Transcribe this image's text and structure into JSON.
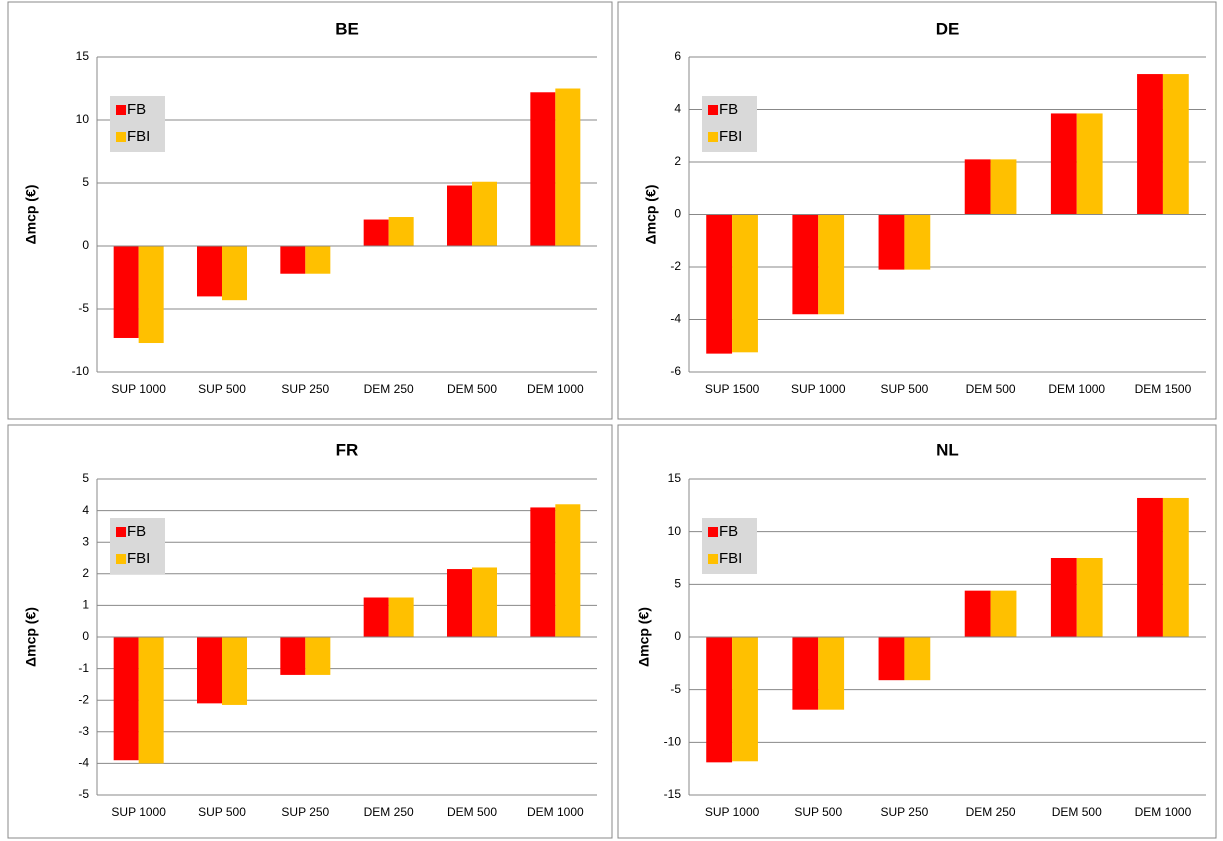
{
  "chart_data": [
    {
      "type": "bar",
      "title": "BE",
      "ylabel": "Δmcp (€)",
      "legend": "upper left",
      "grid": true,
      "categories": [
        "SUP 1000",
        "SUP 500",
        "SUP 250",
        "DEM 250",
        "DEM 500",
        "DEM 1000"
      ],
      "series": [
        {
          "name": "FB",
          "color": "#ff0000",
          "values": [
            -7.3,
            -4.0,
            -2.2,
            2.1,
            4.8,
            12.2
          ]
        },
        {
          "name": "FBI",
          "color": "#ffc000",
          "values": [
            -7.7,
            -4.3,
            -2.2,
            2.3,
            5.1,
            12.5
          ]
        }
      ],
      "ylim": [
        -10,
        15
      ],
      "yticks": [
        -10,
        -5,
        0,
        5,
        10,
        15
      ]
    },
    {
      "type": "bar",
      "title": "DE",
      "ylabel": "Δmcp (€)",
      "legend": "upper left",
      "grid": true,
      "categories": [
        "SUP 1500",
        "SUP 1000",
        "SUP 500",
        "DEM 500",
        "DEM 1000",
        "DEM 1500"
      ],
      "series": [
        {
          "name": "FB",
          "color": "#ff0000",
          "values": [
            -5.3,
            -3.8,
            -2.1,
            2.1,
            3.85,
            5.35
          ]
        },
        {
          "name": "FBI",
          "color": "#ffc000",
          "values": [
            -5.25,
            -3.8,
            -2.1,
            2.1,
            3.85,
            5.35
          ]
        }
      ],
      "ylim": [
        -6,
        6
      ],
      "yticks": [
        -6,
        -4,
        -2,
        0,
        2,
        4,
        6
      ]
    },
    {
      "type": "bar",
      "title": "FR",
      "ylabel": "Δmcp (€)",
      "legend": "upper left",
      "grid": true,
      "categories": [
        "SUP 1000",
        "SUP 500",
        "SUP 250",
        "DEM 250",
        "DEM 500",
        "DEM 1000"
      ],
      "series": [
        {
          "name": "FB",
          "color": "#ff0000",
          "values": [
            -3.9,
            -2.1,
            -1.2,
            1.25,
            2.15,
            4.1
          ]
        },
        {
          "name": "FBI",
          "color": "#ffc000",
          "values": [
            -4.0,
            -2.15,
            -1.2,
            1.25,
            2.2,
            4.2
          ]
        }
      ],
      "ylim": [
        -5,
        5
      ],
      "yticks": [
        -5,
        -4,
        -3,
        -2,
        -1,
        0,
        1,
        2,
        3,
        4,
        5
      ]
    },
    {
      "type": "bar",
      "title": "NL",
      "ylabel": "Δmcp (€)",
      "legend": "upper left",
      "grid": true,
      "categories": [
        "SUP 1000",
        "SUP 500",
        "SUP 250",
        "DEM 250",
        "DEM 500",
        "DEM 1000"
      ],
      "series": [
        {
          "name": "FB",
          "color": "#ff0000",
          "values": [
            -11.9,
            -6.9,
            -4.1,
            4.4,
            7.5,
            13.2
          ]
        },
        {
          "name": "FBI",
          "color": "#ffc000",
          "values": [
            -11.8,
            -6.9,
            -4.1,
            4.4,
            7.5,
            13.2
          ]
        }
      ],
      "ylim": [
        -15,
        15
      ],
      "yticks": [
        -15,
        -10,
        -5,
        0,
        5,
        10,
        15
      ]
    }
  ]
}
